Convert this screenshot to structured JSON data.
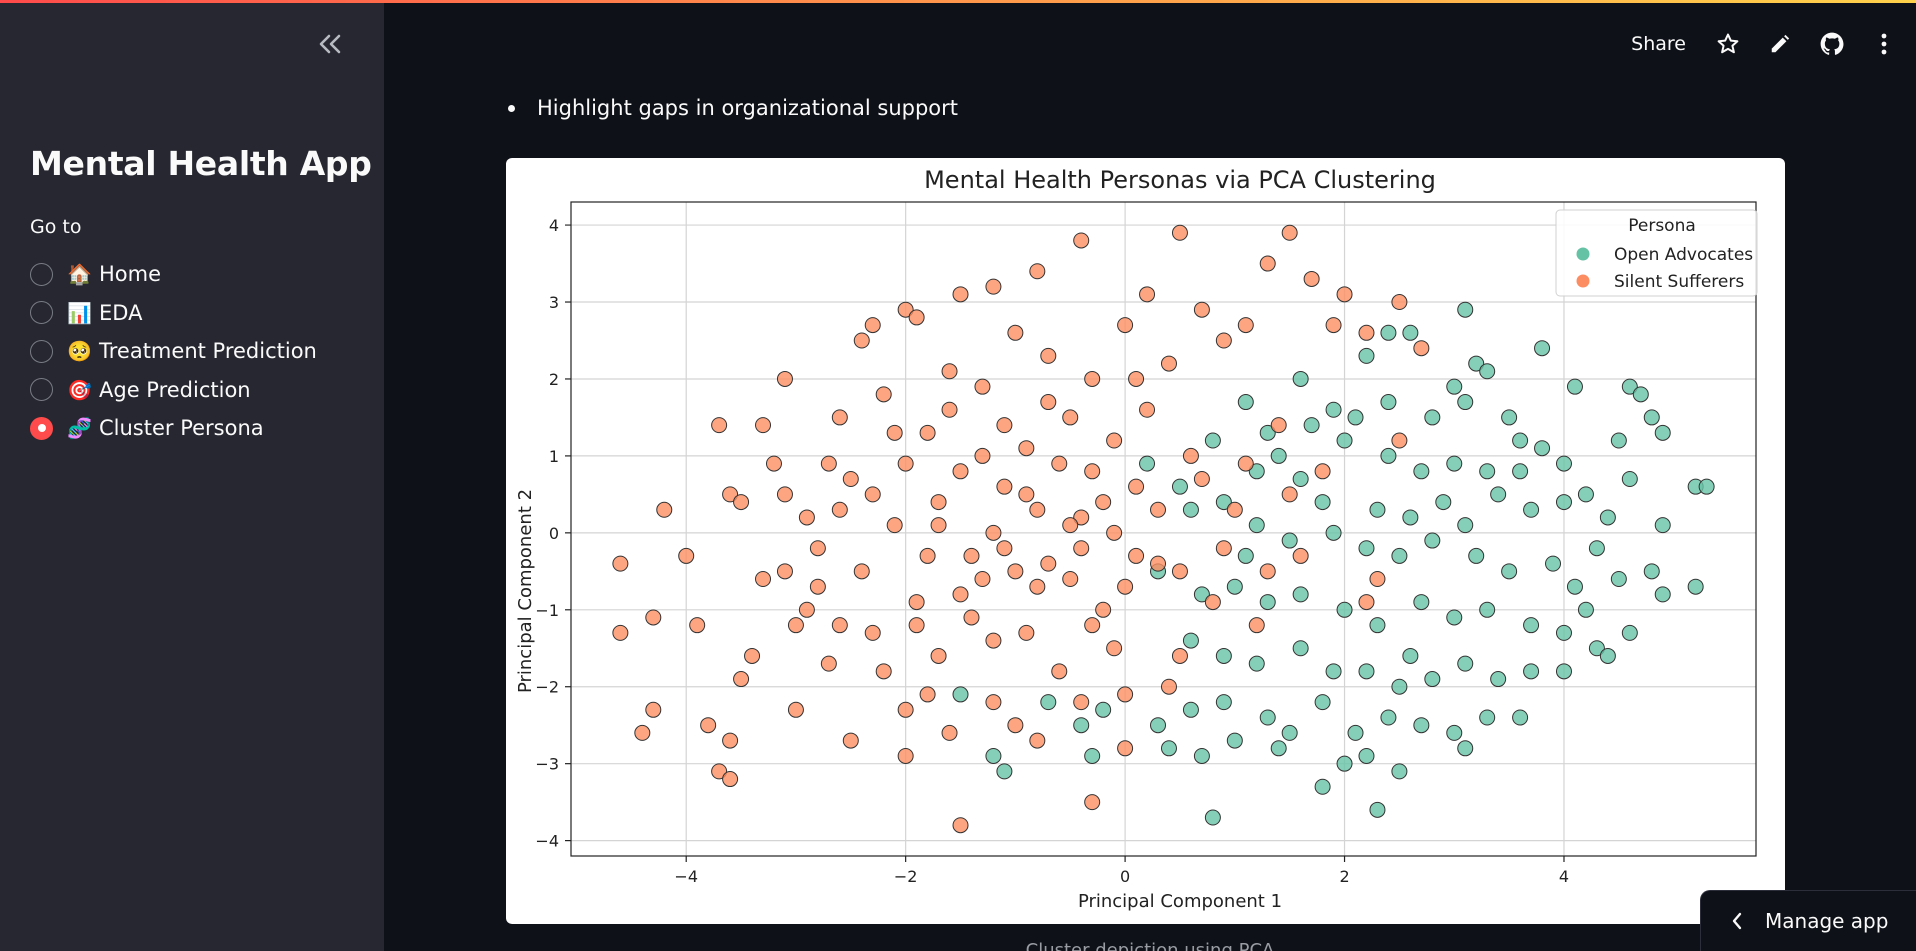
{
  "sidebar": {
    "app_title": "Mental Health App",
    "goto_label": "Go to",
    "items": [
      {
        "emoji": "🏠",
        "label": "Home",
        "selected": false
      },
      {
        "emoji": "📊",
        "label": "EDA",
        "selected": false
      },
      {
        "emoji": "🥺",
        "label": "Treatment Prediction",
        "selected": false
      },
      {
        "emoji": "🎯",
        "label": "Age Prediction",
        "selected": false
      },
      {
        "emoji": "🧬",
        "label": "Cluster Persona",
        "selected": true
      }
    ]
  },
  "header": {
    "share_label": "Share"
  },
  "main": {
    "bullet_text": "Highlight gaps in organizational support",
    "caption": "Cluster depiction using PCA"
  },
  "footer": {
    "manage_app_label": "Manage app"
  },
  "colors": {
    "accent": "#ff4b4b",
    "open_advocates": "#66c2a5",
    "silent_sufferers": "#fc8d62"
  },
  "chart_data": {
    "type": "scatter",
    "title": "Mental Health Personas via PCA Clustering",
    "xlabel": "Principal Component 1",
    "ylabel": "Principal Component 2",
    "xlim": [
      -5.05,
      5.75
    ],
    "ylim": [
      -4.2,
      4.3
    ],
    "xticks": [
      -4,
      -2,
      0,
      2,
      4
    ],
    "yticks": [
      -4,
      -3,
      -2,
      -1,
      0,
      1,
      2,
      3,
      4
    ],
    "grid": true,
    "legend": {
      "title": "Persona",
      "placement": "top-right"
    },
    "series": [
      {
        "name": "Open Advocates",
        "color": "#66c2a5",
        "points": [
          [
            3.1,
            2.9
          ],
          [
            2.4,
            2.6
          ],
          [
            2.6,
            2.6
          ],
          [
            2.2,
            2.3
          ],
          [
            3.2,
            2.2
          ],
          [
            3.3,
            2.1
          ],
          [
            3.8,
            2.4
          ],
          [
            4.1,
            1.9
          ],
          [
            4.6,
            1.9
          ],
          [
            4.7,
            1.8
          ],
          [
            1.6,
            2.0
          ],
          [
            1.9,
            1.6
          ],
          [
            2.4,
            1.7
          ],
          [
            2.1,
            1.5
          ],
          [
            2.8,
            1.5
          ],
          [
            3.0,
            1.9
          ],
          [
            3.1,
            1.7
          ],
          [
            3.5,
            1.5
          ],
          [
            4.5,
            1.2
          ],
          [
            4.8,
            1.5
          ],
          [
            4.9,
            1.3
          ],
          [
            1.1,
            1.7
          ],
          [
            1.3,
            1.3
          ],
          [
            1.4,
            1.0
          ],
          [
            1.7,
            1.4
          ],
          [
            2.0,
            1.2
          ],
          [
            2.4,
            1.0
          ],
          [
            2.7,
            0.8
          ],
          [
            3.0,
            0.9
          ],
          [
            3.3,
            0.8
          ],
          [
            3.6,
            1.2
          ],
          [
            3.8,
            1.1
          ],
          [
            4.0,
            0.9
          ],
          [
            4.2,
            0.5
          ],
          [
            4.6,
            0.7
          ],
          [
            5.2,
            0.6
          ],
          [
            4.9,
            0.1
          ],
          [
            0.8,
            1.2
          ],
          [
            1.2,
            0.8
          ],
          [
            1.6,
            0.7
          ],
          [
            1.8,
            0.4
          ],
          [
            2.3,
            0.3
          ],
          [
            2.6,
            0.2
          ],
          [
            2.9,
            0.4
          ],
          [
            3.1,
            0.1
          ],
          [
            3.4,
            0.5
          ],
          [
            3.7,
            0.3
          ],
          [
            4.0,
            0.4
          ],
          [
            4.3,
            -0.2
          ],
          [
            4.4,
            0.2
          ],
          [
            0.5,
            0.6
          ],
          [
            0.9,
            0.4
          ],
          [
            1.2,
            0.1
          ],
          [
            1.5,
            -0.1
          ],
          [
            1.9,
            0.0
          ],
          [
            2.2,
            -0.2
          ],
          [
            2.5,
            -0.3
          ],
          [
            2.8,
            -0.1
          ],
          [
            3.2,
            -0.3
          ],
          [
            3.5,
            -0.5
          ],
          [
            3.9,
            -0.4
          ],
          [
            4.1,
            -0.7
          ],
          [
            4.5,
            -0.6
          ],
          [
            4.8,
            -0.5
          ],
          [
            4.9,
            -0.8
          ],
          [
            5.2,
            -0.7
          ],
          [
            0.3,
            -0.5
          ],
          [
            0.7,
            -0.8
          ],
          [
            1.0,
            -0.7
          ],
          [
            1.3,
            -0.9
          ],
          [
            1.6,
            -0.8
          ],
          [
            2.0,
            -1.0
          ],
          [
            2.3,
            -1.2
          ],
          [
            2.7,
            -0.9
          ],
          [
            3.0,
            -1.1
          ],
          [
            3.3,
            -1.0
          ],
          [
            3.7,
            -1.2
          ],
          [
            4.0,
            -1.3
          ],
          [
            4.3,
            -1.5
          ],
          [
            4.6,
            -1.3
          ],
          [
            0.6,
            -1.4
          ],
          [
            0.9,
            -1.6
          ],
          [
            1.2,
            -1.7
          ],
          [
            1.6,
            -1.5
          ],
          [
            1.9,
            -1.8
          ],
          [
            2.2,
            -1.8
          ],
          [
            2.5,
            -2.0
          ],
          [
            2.8,
            -1.9
          ],
          [
            3.1,
            -1.7
          ],
          [
            3.4,
            -1.9
          ],
          [
            3.7,
            -1.8
          ],
          [
            4.0,
            -1.8
          ],
          [
            4.4,
            -1.6
          ],
          [
            -1.5,
            -2.1
          ],
          [
            -0.7,
            -2.2
          ],
          [
            -0.4,
            -2.5
          ],
          [
            -0.2,
            -2.3
          ],
          [
            0.3,
            -2.5
          ],
          [
            0.6,
            -2.3
          ],
          [
            0.9,
            -2.2
          ],
          [
            1.3,
            -2.4
          ],
          [
            1.5,
            -2.6
          ],
          [
            1.8,
            -2.2
          ],
          [
            2.1,
            -2.6
          ],
          [
            2.4,
            -2.4
          ],
          [
            2.7,
            -2.5
          ],
          [
            3.0,
            -2.6
          ],
          [
            3.3,
            -2.4
          ],
          [
            3.6,
            -2.4
          ],
          [
            -1.2,
            -2.9
          ],
          [
            -0.3,
            -2.9
          ],
          [
            0.4,
            -2.8
          ],
          [
            0.7,
            -2.9
          ],
          [
            1.0,
            -2.7
          ],
          [
            1.4,
            -2.8
          ],
          [
            2.0,
            -3.0
          ],
          [
            2.2,
            -2.9
          ],
          [
            2.5,
            -3.1
          ],
          [
            3.1,
            -2.8
          ],
          [
            -1.1,
            -3.1
          ],
          [
            1.8,
            -3.3
          ],
          [
            2.3,
            -3.6
          ],
          [
            0.8,
            -3.7
          ],
          [
            5.3,
            0.6
          ],
          [
            0.2,
            0.9
          ],
          [
            0.6,
            0.3
          ],
          [
            1.1,
            -0.3
          ],
          [
            2.6,
            -1.6
          ],
          [
            3.6,
            0.8
          ],
          [
            4.2,
            -1.0
          ]
        ]
      },
      {
        "name": "Silent Sufferers",
        "color": "#fc8d62",
        "points": [
          [
            -4.6,
            -0.4
          ],
          [
            -4.6,
            -1.3
          ],
          [
            -4.4,
            -2.6
          ],
          [
            -4.3,
            -2.3
          ],
          [
            -4.2,
            0.3
          ],
          [
            -4.3,
            -1.1
          ],
          [
            -4.0,
            -0.3
          ],
          [
            -3.9,
            -1.2
          ],
          [
            -3.8,
            -2.5
          ],
          [
            -3.7,
            1.4
          ],
          [
            -3.7,
            -3.1
          ],
          [
            -3.6,
            -3.2
          ],
          [
            -3.6,
            -2.7
          ],
          [
            -3.6,
            0.5
          ],
          [
            -3.5,
            0.4
          ],
          [
            -3.5,
            -1.9
          ],
          [
            -3.4,
            -1.6
          ],
          [
            -3.3,
            -0.6
          ],
          [
            -3.3,
            1.4
          ],
          [
            -3.2,
            0.9
          ],
          [
            -3.1,
            -0.5
          ],
          [
            -3.1,
            0.5
          ],
          [
            -3.1,
            2.0
          ],
          [
            -3.0,
            -1.2
          ],
          [
            -3.0,
            -2.3
          ],
          [
            -2.9,
            0.2
          ],
          [
            -2.8,
            -0.7
          ],
          [
            -2.7,
            0.9
          ],
          [
            -2.7,
            -1.7
          ],
          [
            -2.6,
            1.5
          ],
          [
            -2.5,
            0.7
          ],
          [
            -2.5,
            -2.7
          ],
          [
            -2.4,
            2.5
          ],
          [
            -2.3,
            2.7
          ],
          [
            -2.3,
            -1.3
          ],
          [
            -2.2,
            1.8
          ],
          [
            -2.1,
            0.1
          ],
          [
            -2.0,
            2.9
          ],
          [
            -2.0,
            -2.9
          ],
          [
            -1.9,
            2.8
          ],
          [
            -1.9,
            -0.9
          ],
          [
            -1.8,
            1.3
          ],
          [
            -1.8,
            -2.1
          ],
          [
            -1.7,
            0.4
          ],
          [
            -1.6,
            2.1
          ],
          [
            -1.5,
            3.1
          ],
          [
            -1.5,
            -3.8
          ],
          [
            -1.4,
            -0.3
          ],
          [
            -1.3,
            1.9
          ],
          [
            -1.2,
            3.2
          ],
          [
            -1.2,
            -1.4
          ],
          [
            -1.1,
            0.6
          ],
          [
            -1.0,
            2.6
          ],
          [
            -1.0,
            -2.5
          ],
          [
            -0.9,
            1.1
          ],
          [
            -0.8,
            3.4
          ],
          [
            -0.8,
            -0.7
          ],
          [
            -0.7,
            2.3
          ],
          [
            -0.6,
            -1.8
          ],
          [
            -0.5,
            1.5
          ],
          [
            -0.4,
            3.8
          ],
          [
            -0.4,
            0.2
          ],
          [
            -0.3,
            -3.5
          ],
          [
            -0.3,
            2.0
          ],
          [
            -0.2,
            -1.0
          ],
          [
            -0.1,
            1.2
          ],
          [
            0.0,
            2.7
          ],
          [
            0.0,
            -2.1
          ],
          [
            0.1,
            0.6
          ],
          [
            0.2,
            3.1
          ],
          [
            0.3,
            -0.4
          ],
          [
            0.4,
            2.2
          ],
          [
            0.5,
            3.9
          ],
          [
            0.5,
            -1.6
          ],
          [
            0.6,
            1.0
          ],
          [
            0.7,
            2.9
          ],
          [
            0.8,
            -0.9
          ],
          [
            0.9,
            2.5
          ],
          [
            1.0,
            0.3
          ],
          [
            1.1,
            2.7
          ],
          [
            1.2,
            -1.2
          ],
          [
            1.3,
            3.5
          ],
          [
            1.4,
            1.4
          ],
          [
            1.5,
            3.9
          ],
          [
            1.6,
            -0.3
          ],
          [
            1.7,
            3.3
          ],
          [
            1.8,
            0.8
          ],
          [
            1.9,
            2.7
          ],
          [
            2.0,
            3.1
          ],
          [
            2.2,
            2.6
          ],
          [
            2.3,
            -0.6
          ],
          [
            2.5,
            3.0
          ],
          [
            2.7,
            2.4
          ],
          [
            2.5,
            1.2
          ],
          [
            2.2,
            -0.9
          ],
          [
            -2.6,
            0.3
          ],
          [
            -2.4,
            -0.5
          ],
          [
            -2.2,
            -1.8
          ],
          [
            -2.0,
            0.9
          ],
          [
            -1.8,
            -0.3
          ],
          [
            -1.6,
            1.6
          ],
          [
            -1.4,
            -1.1
          ],
          [
            -1.2,
            0.0
          ],
          [
            -1.0,
            -0.5
          ],
          [
            -0.8,
            0.3
          ],
          [
            -0.6,
            0.9
          ],
          [
            -0.4,
            -0.2
          ],
          [
            -0.2,
            0.4
          ],
          [
            0.0,
            -0.7
          ],
          [
            0.2,
            1.6
          ],
          [
            -1.7,
            -1.6
          ],
          [
            -1.5,
            0.8
          ],
          [
            -1.3,
            -0.6
          ],
          [
            -1.1,
            1.4
          ],
          [
            -0.9,
            -1.3
          ],
          [
            -0.7,
            1.7
          ],
          [
            -0.5,
            -0.6
          ],
          [
            -0.3,
            0.8
          ],
          [
            -0.1,
            -1.5
          ],
          [
            0.1,
            2.0
          ],
          [
            -2.8,
            -0.2
          ],
          [
            -2.9,
            -1.0
          ],
          [
            -2.6,
            -1.2
          ],
          [
            -2.3,
            0.5
          ],
          [
            -2.1,
            1.3
          ],
          [
            -1.9,
            -1.2
          ],
          [
            -1.7,
            0.1
          ],
          [
            -1.5,
            -0.8
          ],
          [
            -1.3,
            1.0
          ],
          [
            -1.1,
            -0.2
          ],
          [
            -0.9,
            0.5
          ],
          [
            -0.7,
            -0.4
          ],
          [
            -0.5,
            0.1
          ],
          [
            -0.3,
            -1.2
          ],
          [
            -0.1,
            0.0
          ],
          [
            0.1,
            -0.3
          ],
          [
            0.3,
            0.3
          ],
          [
            0.5,
            -0.5
          ],
          [
            0.7,
            0.7
          ],
          [
            0.9,
            -0.2
          ],
          [
            1.1,
            0.9
          ],
          [
            1.3,
            -0.5
          ],
          [
            1.5,
            0.5
          ],
          [
            -2.0,
            -2.3
          ],
          [
            -1.6,
            -2.6
          ],
          [
            -1.2,
            -2.2
          ],
          [
            -0.8,
            -2.7
          ],
          [
            -0.4,
            -2.2
          ],
          [
            0.0,
            -2.8
          ],
          [
            0.4,
            -2.0
          ]
        ]
      }
    ]
  }
}
